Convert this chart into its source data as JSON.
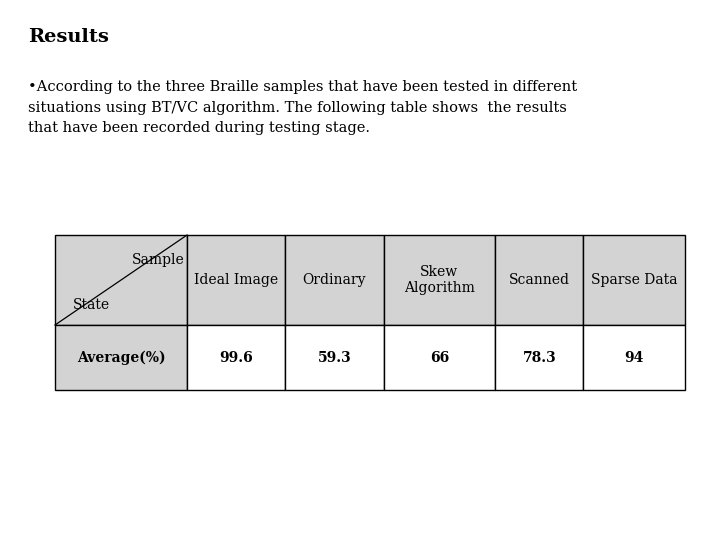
{
  "title": "Results",
  "bullet_text": "•According to the three Braille samples that have been tested in different\nsituations using BT/VC algorithm. The following table shows  the results\nthat have been recorded during testing stage.",
  "header_row": [
    "",
    "Ideal Image",
    "Ordinary",
    "Skew\nAlgorithm",
    "Scanned",
    "Sparse Data"
  ],
  "data_row": [
    "Average(%)",
    "99.6",
    "59.3",
    "66",
    "78.3",
    "94"
  ],
  "header_bg": "#d3d3d3",
  "data_bg": "#ffffff",
  "col0_data_bg": "#d3d3d3",
  "background": "#ffffff",
  "title_fontsize": 14,
  "body_fontsize": 10.5,
  "table_fontsize": 10
}
